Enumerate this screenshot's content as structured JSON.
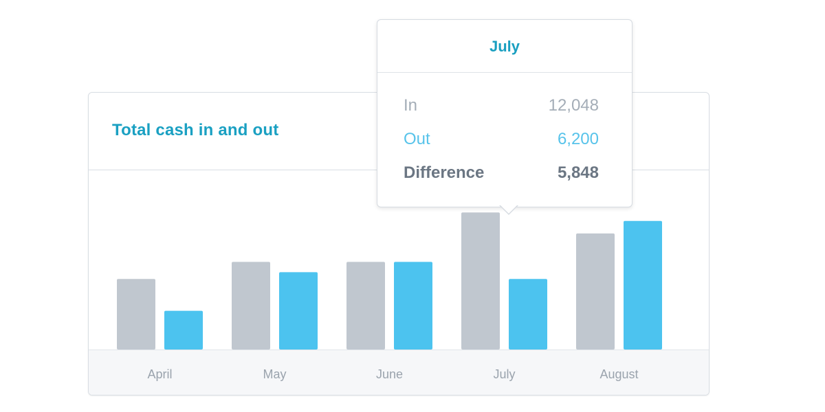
{
  "card": {
    "title": "Total cash in and out"
  },
  "tooltip": {
    "title": "July",
    "rows": [
      {
        "label": "In",
        "value": "12,048"
      },
      {
        "label": "Out",
        "value": "6,200"
      },
      {
        "label": "Difference",
        "value": "5,848"
      }
    ]
  },
  "colors": {
    "in": "#c0c7cf",
    "out": "#4cc3ef",
    "title": "#1aa0c2",
    "axis_label": "#9aa3ad"
  },
  "chart_data": {
    "type": "bar",
    "title": "Total cash in and out",
    "categories": [
      "April",
      "May",
      "June",
      "July",
      "August"
    ],
    "series": [
      {
        "name": "In",
        "values": [
          6200,
          7700,
          7700,
          12048,
          10200
        ]
      },
      {
        "name": "Out",
        "values": [
          3400,
          6800,
          7700,
          6200,
          11300
        ]
      }
    ],
    "xlabel": "",
    "ylabel": "",
    "ylim": [
      0,
      14000
    ],
    "grid": false,
    "legend": "none",
    "highlighted_category": "July"
  }
}
